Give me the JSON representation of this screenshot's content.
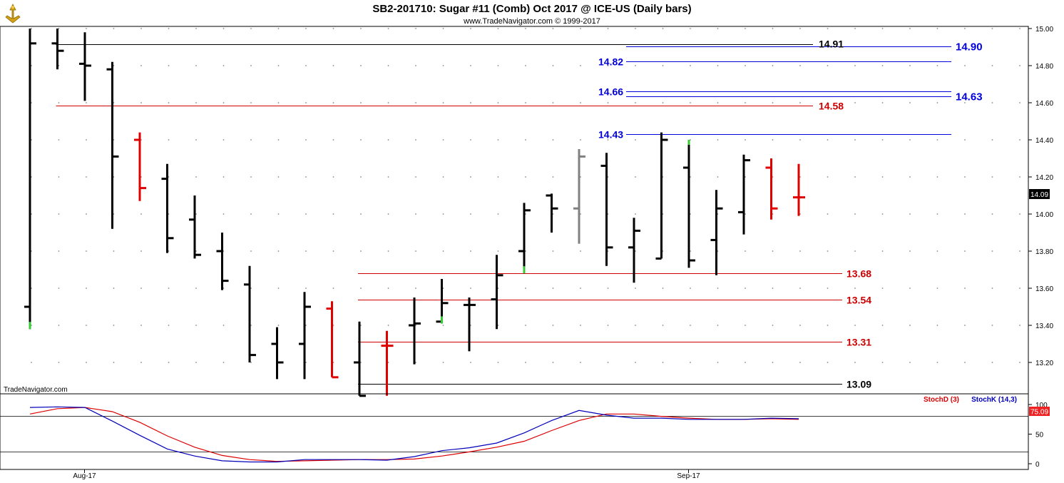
{
  "header": {
    "title": "SB2-201710:  Sugar #11 (Comb) Oct 2017 @ ICE-US  (Daily bars)",
    "subtitle": "www.TradeNavigator.com © 1999-2017"
  },
  "watermark": "TradeNavigator.com",
  "colors": {
    "up_bar": "#000000",
    "down_bar": "#e00000",
    "neutral_bar": "#808080",
    "extreme_tick": "#33cc33",
    "blue_level": "#0000dd",
    "red_level": "#cc0000",
    "black_level": "#000000",
    "stoch_d": "#dd0000",
    "stoch_k": "#0000bb",
    "last_price_bg": "#000000",
    "stoch_badge_bg": "#ee2222"
  },
  "last_price": "14.09",
  "price_axis_ticks": [
    "15.00",
    "14.80",
    "14.60",
    "14.40",
    "14.20",
    "14.00",
    "13.80",
    "13.60",
    "13.40",
    "13.20"
  ],
  "x_axis_labels": [
    {
      "label": "Aug-17",
      "bar_index": 1
    },
    {
      "label": "Sep-17",
      "bar_index": 23
    }
  ],
  "levels": [
    {
      "label": "14.91",
      "price": 14.915,
      "kind": "black",
      "from_bar": 1,
      "to_bar": 27
    },
    {
      "label": "14.90",
      "price": 14.905,
      "kind": "blue",
      "from_bar": 21,
      "to_bar": 33
    },
    {
      "label": "14.82",
      "price": 14.825,
      "kind": "blue",
      "from_bar": 21,
      "to_bar": 33
    },
    {
      "label": "14.66",
      "price": 14.66,
      "kind": "blue",
      "from_bar": 21,
      "to_bar": 33
    },
    {
      "label": "14.63",
      "price": 14.635,
      "kind": "blue",
      "from_bar": 21,
      "to_bar": 33
    },
    {
      "label": "14.58",
      "price": 14.585,
      "kind": "red",
      "from_bar": 1,
      "to_bar": 27
    },
    {
      "label": "14.43",
      "price": 14.43,
      "kind": "blue",
      "from_bar": 22,
      "to_bar": 33
    },
    {
      "label": "13.68",
      "price": 13.68,
      "kind": "red",
      "from_bar": 12,
      "to_bar": 29
    },
    {
      "label": "13.54",
      "price": 13.54,
      "kind": "red",
      "from_bar": 12,
      "to_bar": 29
    },
    {
      "label": "13.31",
      "price": 13.31,
      "kind": "red",
      "from_bar": 12,
      "to_bar": 29
    },
    {
      "label": "13.09",
      "price": 13.085,
      "kind": "black",
      "from_bar": 12,
      "to_bar": 29
    }
  ],
  "stoch": {
    "legend_d": "StochD (3)",
    "legend_k": "StochK (14,3)",
    "value_badge": "75.09",
    "axis_ticks": [
      "100",
      "50",
      "0"
    ],
    "ref_lines": [
      80,
      20
    ]
  },
  "chart_data": {
    "type": "ohlc",
    "title": "SB2-201710:  Sugar #11 (Comb) Oct 2017 @ ICE-US  (Daily bars)",
    "y_range": [
      13.09,
      15.0
    ],
    "x_labels": [
      "Aug-17",
      "Sep-17"
    ],
    "bars": [
      {
        "o": 13.5,
        "h": 15.0,
        "l": 13.38,
        "c": 14.92,
        "color": "black",
        "low_mark": true
      },
      {
        "o": 14.92,
        "h": 15.0,
        "l": 14.78,
        "c": 14.88,
        "color": "black"
      },
      {
        "o": 14.81,
        "h": 14.98,
        "l": 14.61,
        "c": 14.8,
        "color": "black"
      },
      {
        "o": 14.78,
        "h": 14.82,
        "l": 13.92,
        "c": 14.31,
        "color": "black"
      },
      {
        "o": 14.4,
        "h": 14.44,
        "l": 14.07,
        "c": 14.14,
        "color": "red"
      },
      {
        "o": 14.19,
        "h": 14.27,
        "l": 13.79,
        "c": 13.87,
        "color": "black"
      },
      {
        "o": 13.97,
        "h": 14.1,
        "l": 13.76,
        "c": 13.78,
        "color": "black"
      },
      {
        "o": 13.8,
        "h": 13.9,
        "l": 13.59,
        "c": 13.64,
        "color": "black"
      },
      {
        "o": 13.62,
        "h": 13.72,
        "l": 13.2,
        "c": 13.24,
        "color": "black"
      },
      {
        "o": 13.3,
        "h": 13.39,
        "l": 13.11,
        "c": 13.2,
        "color": "black"
      },
      {
        "o": 13.3,
        "h": 13.58,
        "l": 13.11,
        "c": 13.5,
        "color": "black"
      },
      {
        "o": 13.49,
        "h": 13.53,
        "l": 13.12,
        "c": 13.12,
        "color": "red"
      },
      {
        "o": 13.2,
        "h": 13.42,
        "l": 13.02,
        "c": 13.02,
        "color": "black"
      },
      {
        "o": 13.29,
        "h": 13.37,
        "l": 13.02,
        "c": 13.29,
        "color": "red"
      },
      {
        "o": 13.4,
        "h": 13.55,
        "l": 13.19,
        "c": 13.41,
        "color": "black"
      },
      {
        "o": 13.42,
        "h": 13.65,
        "l": 13.41,
        "c": 13.52,
        "color": "black",
        "low_mark": true
      },
      {
        "o": 13.51,
        "h": 13.55,
        "l": 13.26,
        "c": 13.51,
        "color": "black"
      },
      {
        "o": 13.54,
        "h": 13.78,
        "l": 13.38,
        "c": 13.67,
        "color": "black"
      },
      {
        "o": 13.8,
        "h": 14.06,
        "l": 13.68,
        "c": 14.02,
        "color": "black",
        "low_mark": true
      },
      {
        "o": 14.1,
        "h": 14.11,
        "l": 13.9,
        "c": 14.03,
        "color": "black"
      },
      {
        "o": 14.03,
        "h": 14.35,
        "l": 13.84,
        "c": 14.31,
        "color": "gray"
      },
      {
        "o": 14.26,
        "h": 14.33,
        "l": 13.72,
        "c": 13.82,
        "color": "black"
      },
      {
        "o": 13.82,
        "h": 13.98,
        "l": 13.63,
        "c": 13.91,
        "color": "black"
      },
      {
        "o": 13.76,
        "h": 14.44,
        "l": 13.76,
        "c": 14.4,
        "color": "black"
      },
      {
        "o": 14.25,
        "h": 14.4,
        "l": 13.71,
        "c": 13.75,
        "color": "black",
        "high_mark": true
      },
      {
        "o": 13.86,
        "h": 14.13,
        "l": 13.67,
        "c": 14.03,
        "color": "black"
      },
      {
        "o": 14.01,
        "h": 14.32,
        "l": 13.89,
        "c": 14.29,
        "color": "black"
      },
      {
        "o": 14.25,
        "h": 14.3,
        "l": 13.97,
        "c": 14.03,
        "color": "red"
      },
      {
        "o": 14.09,
        "h": 14.27,
        "l": 13.99,
        "c": 14.09,
        "color": "red"
      }
    ],
    "stoch_k": [
      95,
      96,
      95,
      72,
      48,
      25,
      13,
      5,
      3,
      3,
      7,
      7,
      7,
      6,
      12,
      22,
      27,
      35,
      52,
      73,
      90,
      82,
      77,
      77,
      75,
      75,
      75,
      77,
      76
    ],
    "stoch_d": [
      84,
      93,
      95,
      88,
      70,
      47,
      28,
      14,
      7,
      4,
      5,
      6,
      7,
      7,
      8,
      13,
      20,
      28,
      38,
      56,
      73,
      84,
      84,
      80,
      77,
      75,
      75,
      76,
      75
    ],
    "stoch_range": [
      0,
      100
    ]
  }
}
